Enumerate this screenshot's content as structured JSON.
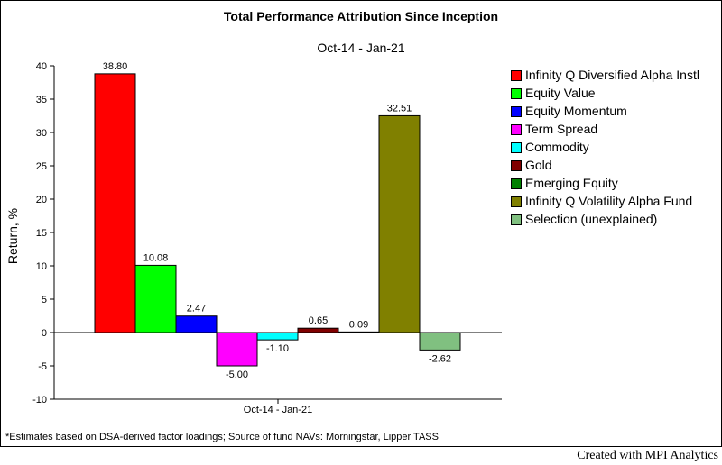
{
  "footer": {
    "note": "*Estimates based on DSA-derived factor loadings; Source of fund NAVs: Morningstar, Lipper TASS",
    "credit": "Created with MPI Analytics"
  },
  "chart_data": {
    "type": "bar",
    "title": "Total Performance Attribution Since Inception",
    "subtitle": "Oct-14 - Jan-21",
    "ylabel": "Return, %",
    "xlabel": "",
    "ylim": [
      -10,
      40
    ],
    "yticks": [
      "40",
      "35",
      "30",
      "25",
      "20",
      "15",
      "10",
      "5",
      "0",
      "-5",
      "-10"
    ],
    "categories": [
      "Oct-14 - Jan-21"
    ],
    "grid": false,
    "legend_position": "right",
    "series": [
      {
        "name": "Infinity Q Diversified Alpha Instl",
        "value": 38.8,
        "label": "38.80",
        "color": "#ff0000"
      },
      {
        "name": "Equity Value",
        "value": 10.08,
        "label": "10.08",
        "color": "#00ff00"
      },
      {
        "name": "Equity Momentum",
        "value": 2.47,
        "label": "2.47",
        "color": "#0000ff"
      },
      {
        "name": "Term Spread",
        "value": -5.0,
        "label": "-5.00",
        "color": "#ff00ff"
      },
      {
        "name": "Commodity",
        "value": -1.1,
        "label": "-1.10",
        "color": "#00ffff"
      },
      {
        "name": "Gold",
        "value": 0.65,
        "label": "0.65",
        "color": "#800000"
      },
      {
        "name": "Emerging Equity",
        "value": 0.09,
        "label": "0.09",
        "color": "#008000"
      },
      {
        "name": "Infinity Q Volatility Alpha Fund",
        "value": 32.51,
        "label": "32.51",
        "color": "#808000"
      },
      {
        "name": "Selection (unexplained)",
        "value": -2.62,
        "label": "-2.62",
        "color": "#80c080"
      }
    ]
  }
}
